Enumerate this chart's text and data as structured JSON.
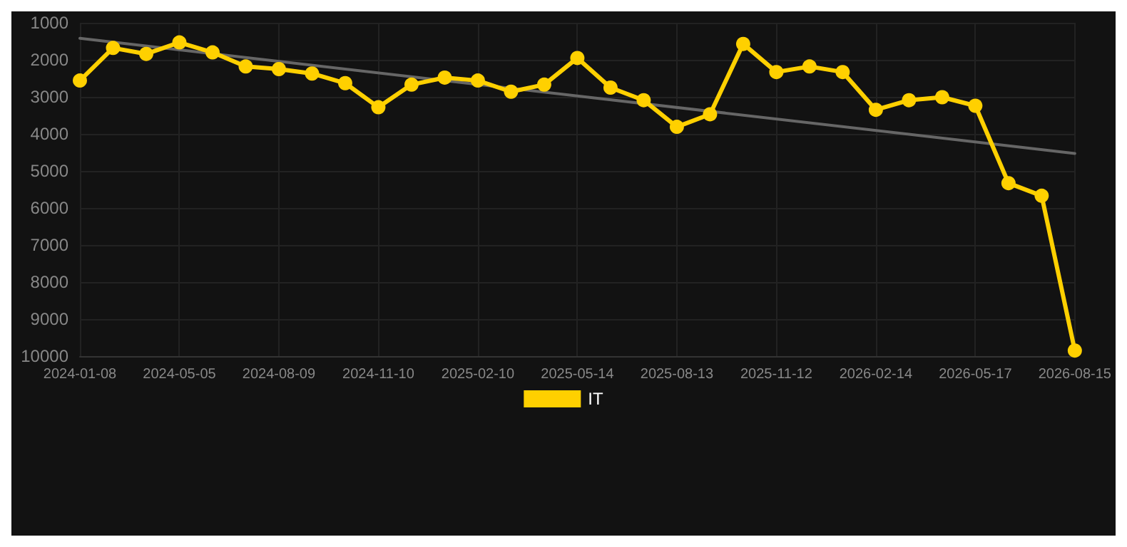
{
  "chart_data": {
    "type": "line",
    "categories": [
      "2024-01-08",
      null,
      null,
      "2024-05-05",
      null,
      null,
      "2024-08-09",
      null,
      null,
      "2024-11-10",
      null,
      null,
      "2025-02-10",
      null,
      null,
      "2025-05-14",
      null,
      null,
      "2025-08-13",
      null,
      null,
      "2025-11-12",
      null,
      null,
      "2026-02-14",
      null,
      null,
      "2026-05-17",
      null,
      null,
      "2026-08-15"
    ],
    "series": [
      {
        "name": "IT",
        "color": "#ffd000",
        "values": [
          2560,
          1680,
          1840,
          1530,
          1800,
          2180,
          2250,
          2370,
          2630,
          3280,
          2670,
          2480,
          2560,
          2860,
          2670,
          1950,
          2750,
          3090,
          3810,
          3470,
          1570,
          2330,
          2180,
          2330,
          3350,
          3090,
          3010,
          3240,
          5330,
          5670,
          9850
        ]
      },
      {
        "type": "line",
        "color": "#666666",
        "marker": "none",
        "values": [
          1420,
          null,
          null,
          null,
          null,
          null,
          null,
          null,
          null,
          null,
          null,
          null,
          null,
          null,
          null,
          null,
          null,
          null,
          null,
          null,
          null,
          null,
          null,
          null,
          null,
          null,
          null,
          null,
          null,
          null,
          4530
        ]
      }
    ],
    "ylim": [
      10000,
      1000
    ],
    "yticks": [
      1000,
      2000,
      3000,
      4000,
      5000,
      6000,
      7000,
      8000,
      9000,
      10000
    ],
    "grid": true,
    "legend": "bottom",
    "marker": "circle",
    "line_style": "solid"
  }
}
